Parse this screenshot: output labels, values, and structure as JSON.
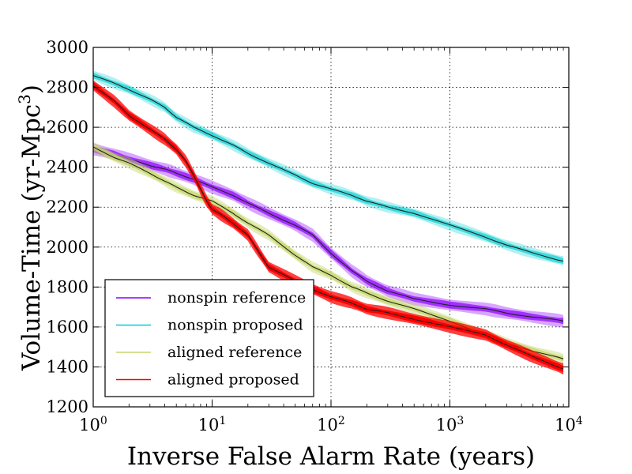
{
  "chart_data": {
    "type": "line",
    "title": "",
    "xlabel": "Inverse False Alarm Rate (years)",
    "ylabel": "Volume-Time (yr-Mpc³)",
    "xscale": "log",
    "xlim": [
      1,
      10000
    ],
    "ylim": [
      1200,
      3000
    ],
    "x_ticks": [
      1,
      10,
      100,
      1000,
      10000
    ],
    "x_tick_labels": [
      {
        "base": "10",
        "exp": "0"
      },
      {
        "base": "10",
        "exp": "1"
      },
      {
        "base": "10",
        "exp": "2"
      },
      {
        "base": "10",
        "exp": "3"
      },
      {
        "base": "10",
        "exp": "4"
      }
    ],
    "y_ticks": [
      1200,
      1400,
      1600,
      1800,
      2000,
      2200,
      2400,
      2600,
      2800,
      3000
    ],
    "y_tick_labels": [
      "1200",
      "1400",
      "1600",
      "1800",
      "2000",
      "2200",
      "2400",
      "2600",
      "2800",
      "3000"
    ],
    "grid": true,
    "legend_position": "bottom-left",
    "series": [
      {
        "name": "nonspin reference",
        "color": "#8b00ff",
        "band_alpha": 0.35,
        "band_halfwidth": 28,
        "x": [
          1,
          1.5,
          2,
          3,
          4,
          5,
          7,
          10,
          15,
          20,
          30,
          50,
          70,
          100,
          150,
          200,
          300,
          500,
          1000,
          2000,
          3000,
          5000,
          9000
        ],
        "y": [
          2490,
          2465,
          2440,
          2410,
          2390,
          2370,
          2340,
          2300,
          2260,
          2220,
          2170,
          2110,
          2060,
          1970,
          1880,
          1830,
          1780,
          1740,
          1710,
          1690,
          1670,
          1650,
          1630
        ],
        "upper": [
          2520,
          2495,
          2470,
          2440,
          2420,
          2400,
          2370,
          2330,
          2290,
          2250,
          2200,
          2140,
          2090,
          2000,
          1910,
          1860,
          1810,
          1770,
          1740,
          1720,
          1700,
          1680,
          1660
        ],
        "lower": [
          2460,
          2435,
          2410,
          2380,
          2360,
          2340,
          2310,
          2270,
          2230,
          2190,
          2140,
          2080,
          2030,
          1940,
          1850,
          1800,
          1750,
          1710,
          1680,
          1660,
          1640,
          1620,
          1600
        ]
      },
      {
        "name": "nonspin proposed",
        "color": "#00ced1",
        "band_alpha": 0.3,
        "band_halfwidth": 25,
        "x": [
          1,
          1.5,
          2,
          3,
          4,
          5,
          7,
          10,
          15,
          20,
          30,
          50,
          70,
          100,
          150,
          200,
          300,
          500,
          1000,
          2000,
          3000,
          5000,
          9000
        ],
        "y": [
          2860,
          2820,
          2790,
          2740,
          2700,
          2650,
          2600,
          2560,
          2510,
          2470,
          2420,
          2360,
          2320,
          2290,
          2260,
          2230,
          2200,
          2170,
          2110,
          2050,
          2010,
          1970,
          1930
        ],
        "upper": [
          2885,
          2845,
          2815,
          2765,
          2725,
          2675,
          2625,
          2585,
          2535,
          2495,
          2445,
          2385,
          2345,
          2315,
          2285,
          2255,
          2225,
          2195,
          2135,
          2075,
          2035,
          1995,
          1955
        ],
        "lower": [
          2835,
          2795,
          2765,
          2715,
          2675,
          2625,
          2575,
          2535,
          2485,
          2445,
          2395,
          2335,
          2295,
          2265,
          2235,
          2205,
          2175,
          2145,
          2085,
          2025,
          1985,
          1945,
          1905
        ]
      },
      {
        "name": "aligned reference",
        "color": "#c5d86d",
        "band_alpha": 0.45,
        "band_halfwidth": 25,
        "x": [
          1,
          1.5,
          2,
          3,
          4,
          5,
          7,
          10,
          15,
          20,
          30,
          50,
          70,
          100,
          150,
          200,
          300,
          500,
          1000,
          2000,
          3000,
          5000,
          9000
        ],
        "y": [
          2500,
          2450,
          2420,
          2370,
          2330,
          2300,
          2260,
          2230,
          2170,
          2120,
          2060,
          1960,
          1900,
          1860,
          1800,
          1770,
          1730,
          1690,
          1630,
          1560,
          1520,
          1480,
          1440
        ],
        "upper": [
          2525,
          2475,
          2445,
          2395,
          2355,
          2325,
          2285,
          2255,
          2195,
          2145,
          2085,
          1985,
          1925,
          1885,
          1825,
          1795,
          1755,
          1715,
          1655,
          1585,
          1545,
          1505,
          1465
        ],
        "lower": [
          2475,
          2425,
          2395,
          2345,
          2305,
          2275,
          2235,
          2205,
          2145,
          2095,
          2035,
          1935,
          1875,
          1835,
          1775,
          1745,
          1705,
          1665,
          1605,
          1535,
          1495,
          1455,
          1415
        ]
      },
      {
        "name": "aligned proposed",
        "color": "#ff0000",
        "band_alpha": 0.75,
        "band_halfwidth": 27,
        "x": [
          1,
          1.5,
          2,
          3,
          4,
          5,
          6,
          7,
          8,
          9,
          10,
          12,
          15,
          20,
          25,
          30,
          50,
          70,
          100,
          150,
          200,
          300,
          500,
          1000,
          2000,
          3000,
          5000,
          9000
        ],
        "y": [
          2810,
          2730,
          2660,
          2590,
          2540,
          2490,
          2430,
          2360,
          2290,
          2230,
          2190,
          2160,
          2120,
          2060,
          1970,
          1900,
          1830,
          1790,
          1750,
          1720,
          1690,
          1670,
          1640,
          1600,
          1560,
          1510,
          1450,
          1390
        ],
        "upper": [
          2838,
          2758,
          2688,
          2618,
          2568,
          2518,
          2458,
          2388,
          2318,
          2258,
          2218,
          2188,
          2148,
          2088,
          1998,
          1928,
          1858,
          1818,
          1778,
          1748,
          1718,
          1698,
          1668,
          1628,
          1588,
          1538,
          1478,
          1418
        ],
        "lower": [
          2782,
          2702,
          2632,
          2562,
          2512,
          2462,
          2402,
          2332,
          2262,
          2202,
          2162,
          2132,
          2092,
          2032,
          1942,
          1872,
          1802,
          1762,
          1722,
          1692,
          1662,
          1642,
          1612,
          1572,
          1532,
          1482,
          1422,
          1362
        ]
      }
    ]
  }
}
